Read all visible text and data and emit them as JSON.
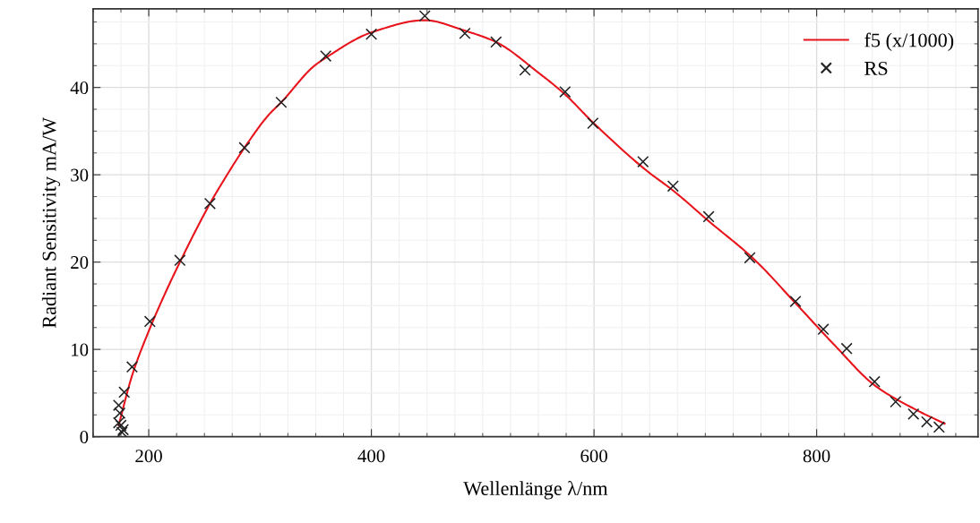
{
  "chart_data": {
    "type": "line",
    "xlabel": "Wellenlänge λ/nm",
    "ylabel": "Radiant Sensitivity mA/W",
    "xlim": [
      150,
      945
    ],
    "ylim": [
      0,
      49
    ],
    "xticks": [
      200,
      400,
      600,
      800
    ],
    "yticks": [
      0,
      10,
      20,
      30,
      40
    ],
    "grid": true,
    "legend": "top right",
    "series": [
      {
        "name": "f5 (x/1000)",
        "color": "#e8141c",
        "marker": "none",
        "line_style": "solid",
        "x": [
          173,
          175,
          185,
          200,
          215,
          228,
          255,
          268,
          286,
          308,
          319,
          348,
          359,
          400,
          448,
          484,
          512,
          550,
          574,
          599,
          647,
          671,
          703,
          744,
          781,
          816,
          852,
          889,
          915
        ],
        "values": [
          1.3,
          2.3,
          7.0,
          12.1,
          16.5,
          20.0,
          26.7,
          29.5,
          33.1,
          36.9,
          38.3,
          42.4,
          43.4,
          46.3,
          47.7,
          46.5,
          45.2,
          41.7,
          39.2,
          36.0,
          30.5,
          28.2,
          24.7,
          20.3,
          15.3,
          10.5,
          5.9,
          3.1,
          1.5
        ]
      },
      {
        "name": "RS",
        "type": "scatter",
        "color": "#222222",
        "marker": "cross",
        "x": [
          173,
          174,
          173,
          175,
          177,
          176,
          178,
          185,
          201,
          228,
          255,
          286,
          319,
          359,
          400,
          448,
          484,
          512,
          538,
          574,
          599,
          644,
          671,
          703,
          740,
          781,
          806,
          827,
          852,
          871,
          887,
          899,
          910
        ],
        "values": [
          3.6,
          2.7,
          1.6,
          1.3,
          0.8,
          0.5,
          5.1,
          8.0,
          13.2,
          20.2,
          26.7,
          33.1,
          38.3,
          43.6,
          46.1,
          48.2,
          46.2,
          45.2,
          42.0,
          39.5,
          35.9,
          31.5,
          28.7,
          25.2,
          20.5,
          15.5,
          12.3,
          10.1,
          6.3,
          4.0,
          2.6,
          1.7,
          1.1
        ]
      }
    ]
  }
}
